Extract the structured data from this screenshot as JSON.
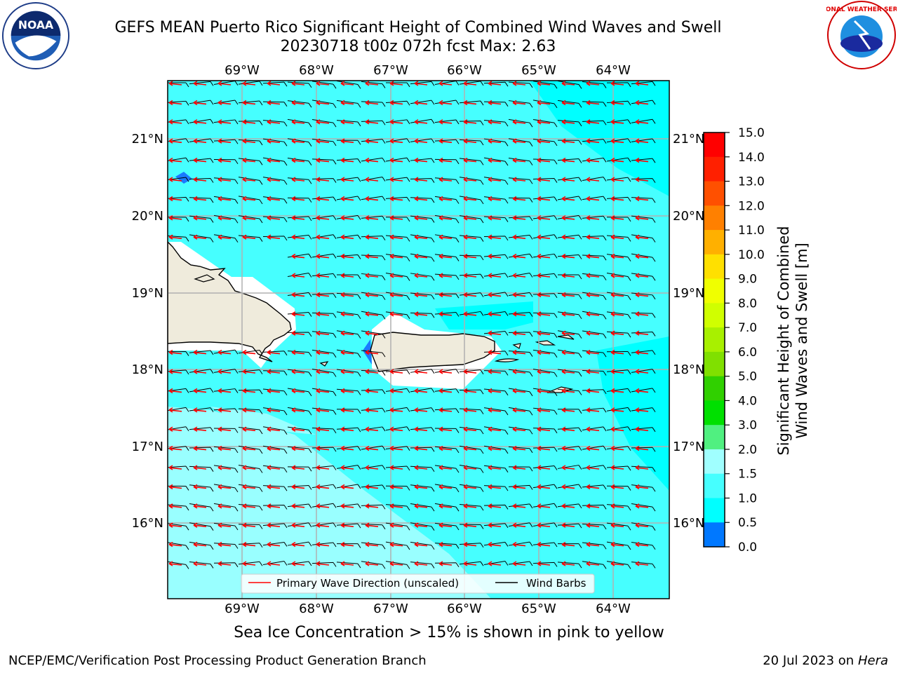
{
  "header": {
    "title_line1": "GEFS MEAN Puerto Rico Significant Height of Combined Wind Waves and Swell",
    "title_line2": "20230718 t00z 072h fcst   Max: 2.63"
  },
  "logos": {
    "left": {
      "icon": "noaa-logo-icon",
      "text": "NOAA"
    },
    "right": {
      "icon": "nws-logo-icon",
      "text": "NATIONAL WEATHER SERVICE"
    }
  },
  "map": {
    "lon_labels": [
      "69°W",
      "68°W",
      "67°W",
      "66°W",
      "65°W",
      "64°W"
    ],
    "lat_labels": [
      "21°N",
      "20°N",
      "19°N",
      "18°N",
      "17°N",
      "16°N"
    ],
    "lon_values": [
      -69,
      -68,
      -67,
      -66,
      -65,
      -64
    ],
    "lat_values": [
      21,
      20,
      19,
      18,
      17,
      16
    ],
    "legend": {
      "wave_direction": "Primary Wave Direction (unscaled)",
      "wind_barbs": "Wind Barbs"
    },
    "colors": {
      "land": "#efebdc",
      "ocean_light": "#99ffff",
      "ocean_main": "#46ffff",
      "ocean_deep": "#00ffff",
      "wave_arrow": "#ff0000",
      "wind_barb": "#000000"
    }
  },
  "colorbar": {
    "label_line1": "Significant Height of Combined",
    "label_line2": "Wind Waves and Swell [m]",
    "ticks": [
      "15.0",
      "14.0",
      "13.0",
      "12.0",
      "11.0",
      "10.0",
      "9.0",
      "8.0",
      "7.0",
      "6.0",
      "5.0",
      "4.0",
      "3.0",
      "2.0",
      "1.5",
      "1.0",
      "0.5",
      "0.0"
    ],
    "colors": [
      "#ff0000",
      "#ff2000",
      "#ff5000",
      "#ff8000",
      "#ffb000",
      "#ffe000",
      "#f0ff00",
      "#d0ff00",
      "#a8f000",
      "#80e000",
      "#30d000",
      "#00e000",
      "#50f080",
      "#a0ffff",
      "#46ffff",
      "#00ffff",
      "#0078ff",
      "#0000ff"
    ]
  },
  "subtitle": "Sea Ice Concentration > 15% is shown in pink to yellow",
  "footer": {
    "left": "NCEP/EMC/Verification Post Processing Product Generation Branch",
    "right_date": "20 Jul 2023 on ",
    "right_host": "Hera"
  }
}
